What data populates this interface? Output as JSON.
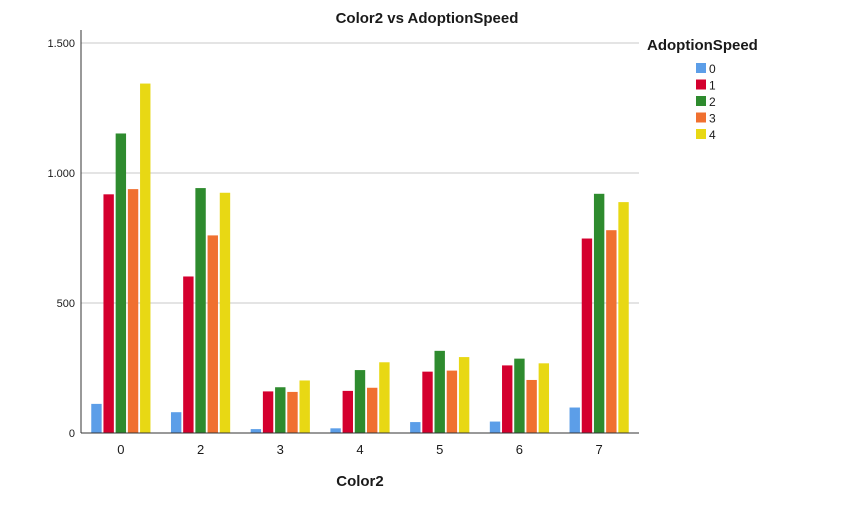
{
  "chart_data": {
    "type": "bar",
    "title": "Color2 vs AdoptionSpeed",
    "xlabel": "Color2",
    "ylabel": "",
    "ylim": [
      0,
      1550
    ],
    "yticks": [
      0,
      500,
      1000,
      1500
    ],
    "ytick_labels": [
      "0",
      "500",
      "1.000",
      "1.500"
    ],
    "grid": true,
    "categories": [
      "0",
      "2",
      "3",
      "4",
      "5",
      "6",
      "7"
    ],
    "legend": {
      "title": "AdoptionSpeed",
      "placement": "top-right"
    },
    "series": [
      {
        "name": "0",
        "color": "#5c9ee8",
        "values": [
          112,
          80,
          15,
          18,
          42,
          44,
          98
        ]
      },
      {
        "name": "1",
        "color": "#d4002e",
        "values": [
          918,
          602,
          160,
          162,
          236,
          260,
          748
        ]
      },
      {
        "name": "2",
        "color": "#2e8b2e",
        "values": [
          1152,
          942,
          176,
          242,
          316,
          286,
          920
        ]
      },
      {
        "name": "3",
        "color": "#f07030",
        "values": [
          938,
          760,
          158,
          174,
          240,
          204,
          780
        ]
      },
      {
        "name": "4",
        "color": "#e8d814",
        "values": [
          1344,
          924,
          202,
          272,
          292,
          268,
          888
        ]
      }
    ]
  }
}
